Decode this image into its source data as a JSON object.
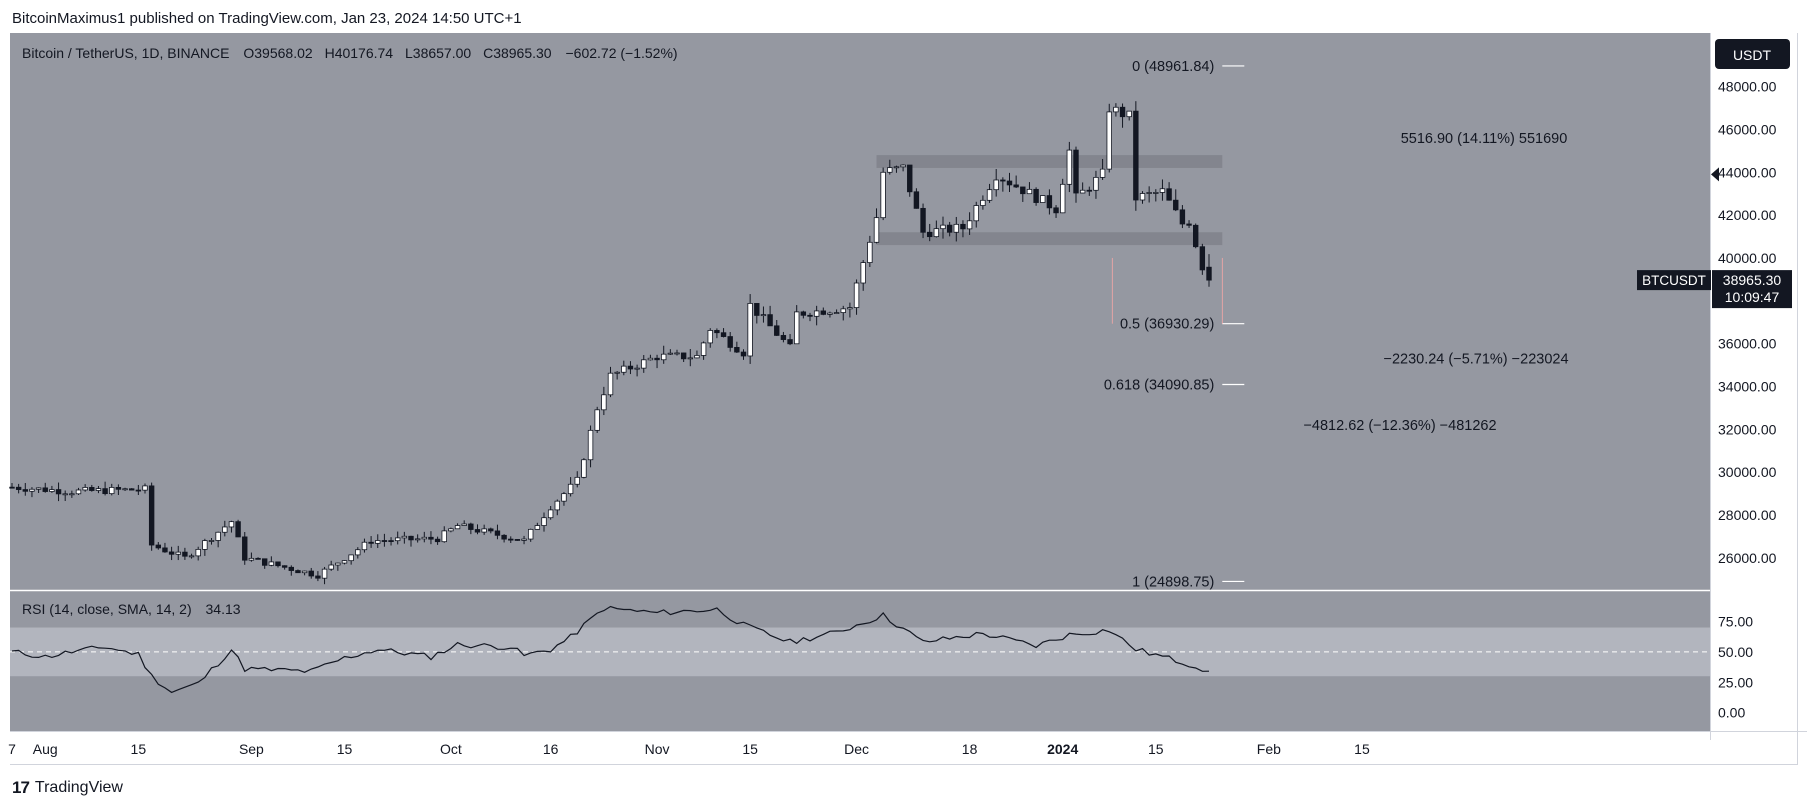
{
  "credit": "BitcoinMaximus1 published on TradingView.com, Jan 23, 2024 14:50 UTC+1",
  "footer": {
    "brand": "TradingView",
    "logo_icon": "tradingview-logo-icon"
  },
  "colors": {
    "chart_bg": "#9598a1",
    "rsi_band": "#b2b5be",
    "candle_up": "#ffffff",
    "candle_down": "#131722",
    "zone": "#7e8189",
    "price_badge": "#131722"
  },
  "header": {
    "symbol": "Bitcoin / TetherUS, 1D, BINANCE",
    "open_label": "O",
    "open": "39568.02",
    "high_label": "H",
    "high": "40176.74",
    "low_label": "L",
    "low": "38657.00",
    "close_label": "C",
    "close": "38965.30",
    "change": "−602.72 (−1.52%)"
  },
  "currency_button": "USDT",
  "price_badge": {
    "symbol": "BTCUSDT",
    "price": "38965.30",
    "countdown": "10:09:47"
  },
  "chart_data": {
    "type": "candlestick",
    "title": "Bitcoin / TetherUS, 1D, BINANCE",
    "ylim": [
      24500,
      50500
    ],
    "y_ticks": [
      26000,
      28000,
      30000,
      32000,
      34000,
      36000,
      38000,
      40000,
      42000,
      44000,
      46000,
      48000
    ],
    "y_tick_labels": [
      "26000.00",
      "28000.00",
      "30000.00",
      "32000.00",
      "34000.00",
      "36000.00",
      "38000.00",
      "40000.00",
      "42000.00",
      "44000.00",
      "46000.00",
      "48000.00"
    ],
    "x_start": "2023-07-27",
    "x_ticks": [
      {
        "date": "2023-07-27",
        "label": "7"
      },
      {
        "date": "2023-08-01",
        "label": "Aug"
      },
      {
        "date": "2023-08-15",
        "label": "15"
      },
      {
        "date": "2023-09-01",
        "label": "Sep"
      },
      {
        "date": "2023-09-15",
        "label": "15"
      },
      {
        "date": "2023-10-01",
        "label": "Oct"
      },
      {
        "date": "2023-10-16",
        "label": "16"
      },
      {
        "date": "2023-11-01",
        "label": "Nov"
      },
      {
        "date": "2023-11-15",
        "label": "15"
      },
      {
        "date": "2023-12-01",
        "label": "Dec"
      },
      {
        "date": "2023-12-18",
        "label": "18"
      },
      {
        "date": "2024-01-01",
        "label": "2024"
      },
      {
        "date": "2024-01-15",
        "label": "15"
      },
      {
        "date": "2024-02-01",
        "label": "Feb"
      },
      {
        "date": "2024-02-15",
        "label": "15"
      }
    ],
    "close_anchors": [
      {
        "date": "2023-07-27",
        "close": 29300
      },
      {
        "date": "2023-08-05",
        "close": 29100
      },
      {
        "date": "2023-08-16",
        "close": 29200
      },
      {
        "date": "2023-08-17",
        "close": 26600
      },
      {
        "date": "2023-08-22",
        "close": 26000
      },
      {
        "date": "2023-08-29",
        "close": 27700
      },
      {
        "date": "2023-08-31",
        "close": 26000
      },
      {
        "date": "2023-09-11",
        "close": 25200
      },
      {
        "date": "2023-09-19",
        "close": 26800
      },
      {
        "date": "2023-09-29",
        "close": 26900
      },
      {
        "date": "2023-10-02",
        "close": 27500
      },
      {
        "date": "2023-10-12",
        "close": 26800
      },
      {
        "date": "2023-10-16",
        "close": 28400
      },
      {
        "date": "2023-10-20",
        "close": 29600
      },
      {
        "date": "2023-10-23",
        "close": 33000
      },
      {
        "date": "2023-10-25",
        "close": 34500
      },
      {
        "date": "2023-11-01",
        "close": 35400
      },
      {
        "date": "2023-11-07",
        "close": 35400
      },
      {
        "date": "2023-11-09",
        "close": 36700
      },
      {
        "date": "2023-11-14",
        "close": 35600
      },
      {
        "date": "2023-11-15",
        "close": 37800
      },
      {
        "date": "2023-11-21",
        "close": 35800
      },
      {
        "date": "2023-11-22",
        "close": 37400
      },
      {
        "date": "2023-11-30",
        "close": 37700
      },
      {
        "date": "2023-12-04",
        "close": 41900
      },
      {
        "date": "2023-12-05",
        "close": 44000
      },
      {
        "date": "2023-12-08",
        "close": 44200
      },
      {
        "date": "2023-12-11",
        "close": 41200
      },
      {
        "date": "2023-12-17",
        "close": 41400
      },
      {
        "date": "2023-12-22",
        "close": 43900
      },
      {
        "date": "2023-12-31",
        "close": 42300
      },
      {
        "date": "2024-01-02",
        "close": 45000
      },
      {
        "date": "2024-01-03",
        "close": 42800
      },
      {
        "date": "2024-01-07",
        "close": 43900
      },
      {
        "date": "2024-01-08",
        "close": 47000
      },
      {
        "date": "2024-01-11",
        "close": 46600
      },
      {
        "date": "2024-01-12",
        "close": 42800
      },
      {
        "date": "2024-01-16",
        "close": 43100
      },
      {
        "date": "2024-01-19",
        "close": 41600
      },
      {
        "date": "2024-01-20",
        "close": 41700
      },
      {
        "date": "2024-01-22",
        "close": 39600
      },
      {
        "date": "2024-01-23",
        "close": 38965.3
      }
    ],
    "last_candle": {
      "date": "2024-01-23",
      "open": 39568.02,
      "high": 40176.74,
      "low": 38657.0,
      "close": 38965.3
    },
    "zones": [
      {
        "from": "2023-12-04",
        "to": "2024-01-25",
        "low": 44200,
        "high": 44800
      },
      {
        "from": "2023-12-04",
        "to": "2024-01-25",
        "low": 40600,
        "high": 41200
      }
    ],
    "fib_levels": [
      {
        "level": "0",
        "label": "0 (48961.84)",
        "price": 48961.84
      },
      {
        "level": "0.5",
        "label": "0.5 (36930.29)",
        "price": 36930.29
      },
      {
        "level": "0.618",
        "label": "0.618 (34090.85)",
        "price": 34090.85
      },
      {
        "level": "1",
        "label": "1 (24898.75)",
        "price": 24898.75
      }
    ],
    "fib_line_date": "2024-01-25",
    "measurements": [
      {
        "label": "5516.90 (14.11%) 551690",
        "price": 45600
      },
      {
        "label": "−2230.24 (−5.71%) −223024",
        "price": 35300
      },
      {
        "label": "−4812.62 (−12.36%) −481262",
        "price": 32200
      }
    ],
    "rsi": {
      "title": "RSI (14, close, SMA, 14, 2)",
      "value": "34.13",
      "ylim": [
        -15,
        100
      ],
      "band": [
        30,
        70
      ],
      "ticks": [
        0,
        25,
        50,
        75
      ],
      "tick_labels": [
        "0.00",
        "25.00",
        "50.00",
        "75.00"
      ],
      "anchors": [
        {
          "date": "2023-07-27",
          "v": 50
        },
        {
          "date": "2023-08-01",
          "v": 46
        },
        {
          "date": "2023-08-05",
          "v": 50
        },
        {
          "date": "2023-08-10",
          "v": 54
        },
        {
          "date": "2023-08-15",
          "v": 48
        },
        {
          "date": "2023-08-17",
          "v": 30
        },
        {
          "date": "2023-08-20",
          "v": 17
        },
        {
          "date": "2023-08-24",
          "v": 24
        },
        {
          "date": "2023-08-29",
          "v": 52
        },
        {
          "date": "2023-08-31",
          "v": 36
        },
        {
          "date": "2023-09-10",
          "v": 34
        },
        {
          "date": "2023-09-15",
          "v": 45
        },
        {
          "date": "2023-09-20",
          "v": 52
        },
        {
          "date": "2023-09-28",
          "v": 46
        },
        {
          "date": "2023-10-02",
          "v": 56
        },
        {
          "date": "2023-10-10",
          "v": 54
        },
        {
          "date": "2023-10-12",
          "v": 47
        },
        {
          "date": "2023-10-16",
          "v": 52
        },
        {
          "date": "2023-10-19",
          "v": 62
        },
        {
          "date": "2023-10-24",
          "v": 86
        },
        {
          "date": "2023-11-01",
          "v": 82
        },
        {
          "date": "2023-11-10",
          "v": 85
        },
        {
          "date": "2023-11-14",
          "v": 72
        },
        {
          "date": "2023-11-21",
          "v": 58
        },
        {
          "date": "2023-11-28",
          "v": 66
        },
        {
          "date": "2023-12-05",
          "v": 80
        },
        {
          "date": "2023-12-11",
          "v": 58
        },
        {
          "date": "2023-12-20",
          "v": 65
        },
        {
          "date": "2023-12-28",
          "v": 55
        },
        {
          "date": "2024-01-02",
          "v": 64
        },
        {
          "date": "2024-01-08",
          "v": 68
        },
        {
          "date": "2024-01-12",
          "v": 52
        },
        {
          "date": "2024-01-16",
          "v": 46
        },
        {
          "date": "2024-01-20",
          "v": 40
        },
        {
          "date": "2024-01-23",
          "v": 34.13
        }
      ]
    }
  }
}
